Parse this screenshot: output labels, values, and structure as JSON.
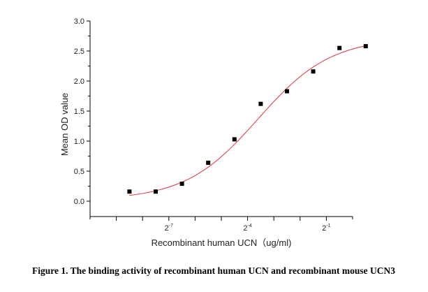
{
  "chart_data": {
    "type": "scatter",
    "title": "",
    "xlabel": "Recombinant human UCN（ug/ml)",
    "ylabel": "Mean OD value",
    "x_scale": "log2",
    "xlim_exp": [
      -10,
      0
    ],
    "x_tick_exponents": [
      -9,
      -8,
      -7,
      -6,
      -5,
      -4,
      -3,
      -2,
      -1
    ],
    "x_tick_labels": [
      {
        "exp": -7,
        "base": "2",
        "sup": "-7"
      },
      {
        "exp": -4,
        "base": "2",
        "sup": "-4"
      },
      {
        "exp": -1,
        "base": "2",
        "sup": "-1"
      }
    ],
    "ylim": [
      0,
      3.0
    ],
    "y_ticks": [
      0.0,
      0.5,
      1.0,
      1.5,
      2.0,
      2.5,
      3.0
    ],
    "y_tick_labels": [
      "0.0",
      "0.5",
      "1.0",
      "1.5",
      "2.0",
      "2.5",
      "3.0"
    ],
    "grid": false,
    "series": [
      {
        "marker": "square",
        "color": "#000000",
        "points": [
          {
            "x_exp": -8.5,
            "y": 0.16
          },
          {
            "x_exp": -7.5,
            "y": 0.16
          },
          {
            "x_exp": -6.5,
            "y": 0.29
          },
          {
            "x_exp": -5.5,
            "y": 0.64
          },
          {
            "x_exp": -4.5,
            "y": 1.03
          },
          {
            "x_exp": -3.5,
            "y": 1.62
          },
          {
            "x_exp": -2.5,
            "y": 1.83
          },
          {
            "x_exp": -1.5,
            "y": 2.16
          },
          {
            "x_exp": -0.5,
            "y": 2.55
          },
          {
            "x_exp": 0.5,
            "y": 2.58
          }
        ]
      }
    ],
    "fit_curve": {
      "color": "#e0303a",
      "model": "4PL",
      "bottom": 0.02,
      "top": 2.72,
      "ec50_exp": -3.6,
      "slope": 0.52,
      "x_exp_range": [
        -8.5,
        0.5
      ]
    }
  },
  "caption": "Figure 1. The binding activity of recombinant human UCN and recombinant mouse UCN3"
}
